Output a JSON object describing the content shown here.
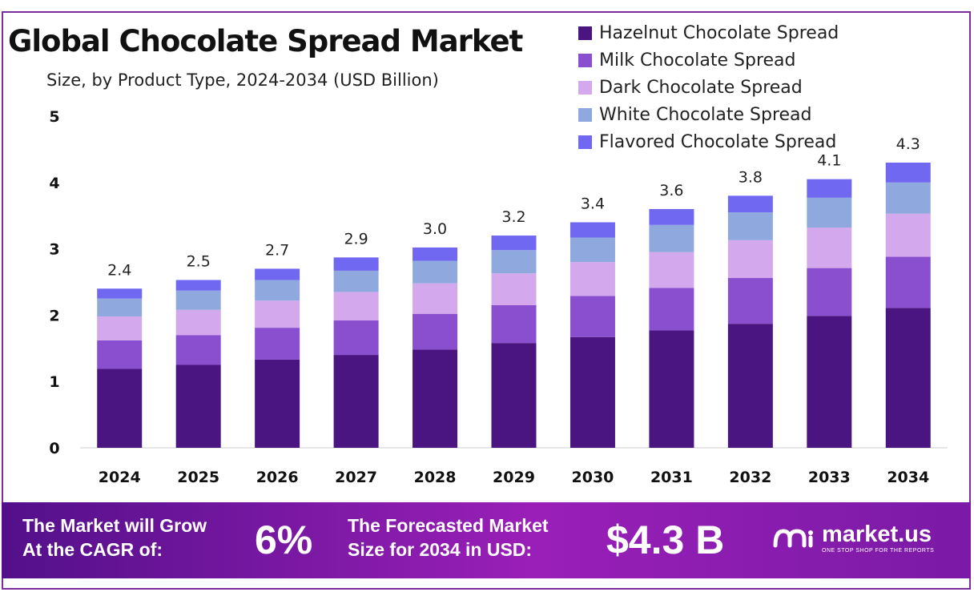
{
  "chart_data": {
    "type": "bar",
    "stacked": true,
    "title": "Global Chocolate Spread Market",
    "subtitle": "Size, by Product Type, 2024-2034 (USD Billion)",
    "categories": [
      "2024",
      "2025",
      "2026",
      "2027",
      "2028",
      "2029",
      "2030",
      "2031",
      "2032",
      "2033",
      "2034"
    ],
    "totals": [
      "2.4",
      "2.5",
      "2.7",
      "2.9",
      "3.0",
      "3.2",
      "3.4",
      "3.6",
      "3.8",
      "4.1",
      "4.3"
    ],
    "ylim": [
      0,
      5
    ],
    "yticks": [
      "0",
      "1",
      "2",
      "3",
      "4",
      "5"
    ],
    "grid": false,
    "legend_position": "top-right",
    "series": [
      {
        "name": "Hazelnut Chocolate Spread",
        "color": "#4a1580",
        "values": [
          1.19,
          1.25,
          1.33,
          1.4,
          1.48,
          1.58,
          1.67,
          1.77,
          1.87,
          1.99,
          2.11
        ]
      },
      {
        "name": "Milk Chocolate Spread",
        "color": "#8a4fcf",
        "values": [
          0.43,
          0.45,
          0.48,
          0.52,
          0.54,
          0.57,
          0.62,
          0.64,
          0.69,
          0.72,
          0.77
        ]
      },
      {
        "name": "Dark Chocolate Spread",
        "color": "#d4a8ec",
        "values": [
          0.36,
          0.38,
          0.41,
          0.43,
          0.46,
          0.48,
          0.51,
          0.54,
          0.57,
          0.61,
          0.65
        ]
      },
      {
        "name": "White Chocolate Spread",
        "color": "#8fa9df",
        "values": [
          0.27,
          0.29,
          0.31,
          0.32,
          0.34,
          0.35,
          0.37,
          0.41,
          0.42,
          0.45,
          0.47
        ]
      },
      {
        "name": "Flavored Chocolate Spread",
        "color": "#7168f2",
        "values": [
          0.15,
          0.16,
          0.17,
          0.2,
          0.2,
          0.22,
          0.23,
          0.24,
          0.25,
          0.28,
          0.3
        ]
      }
    ]
  },
  "footer": {
    "cagr_line1": "The Market will Grow",
    "cagr_line2": "At the CAGR of:",
    "cagr_value": "6%",
    "forecast_line1": "The Forecasted Market",
    "forecast_line2": "Size for 2034 in USD:",
    "forecast_value": "$4.3 B"
  },
  "brand": {
    "name": "market.us",
    "tagline": "ONE STOP SHOP FOR THE REPORTS"
  }
}
